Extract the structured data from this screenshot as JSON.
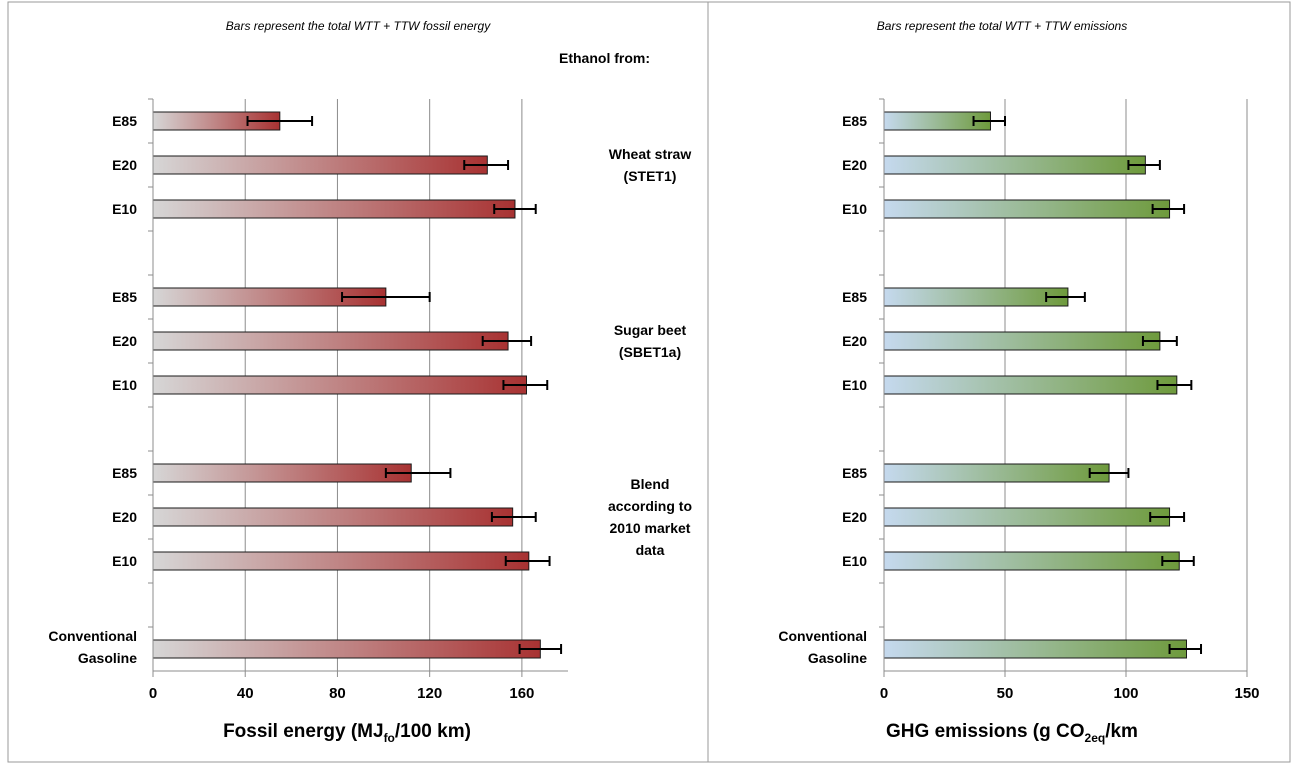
{
  "chart_data": [
    {
      "type": "bar",
      "orientation": "horizontal",
      "title": "Bars represent the total WTT + TTW fossil energy",
      "xlabel": {
        "main": "Fossil energy (MJ",
        "sub": "fo",
        "tail": "/100 km)"
      },
      "xlim": [
        0,
        180
      ],
      "xticks": [
        0,
        40,
        80,
        120,
        160
      ],
      "grid": true,
      "bar_color_start": "#d6d6d6",
      "bar_color_end": "#a83232",
      "categories": [
        "E85",
        "E20",
        "E10",
        "E85",
        "E20",
        "E10",
        "E85",
        "E20",
        "E10",
        "Conventional Gasoline"
      ],
      "values": [
        55,
        145,
        157,
        101,
        154,
        162,
        112,
        156,
        163,
        168
      ],
      "error_low": [
        41,
        135,
        148,
        82,
        143,
        152,
        101,
        147,
        153,
        159
      ],
      "error_high": [
        69,
        154,
        166,
        120,
        164,
        171,
        129,
        166,
        172,
        177
      ],
      "group_header": "Ethanol from:",
      "groups": [
        {
          "lines": [
            "Wheat straw",
            "(STET1)"
          ]
        },
        {
          "lines": [
            "Sugar beet",
            "(SBET1a)"
          ]
        },
        {
          "lines": [
            "Blend",
            "according to",
            "2010 market",
            "data"
          ]
        }
      ]
    },
    {
      "type": "bar",
      "orientation": "horizontal",
      "title": "Bars represent the total WTT + TTW emissions",
      "xlabel": {
        "main": "GHG emissions (g CO",
        "sub": "2eq",
        "tail": "/km"
      },
      "xlim": [
        0,
        150
      ],
      "xticks": [
        0,
        50,
        100,
        150
      ],
      "grid": true,
      "bar_color_start": "#c5d9ee",
      "bar_color_end": "#6e9a3c",
      "categories": [
        "E85",
        "E20",
        "E10",
        "E85",
        "E20",
        "E10",
        "E85",
        "E20",
        "E10",
        "Conventional Gasoline"
      ],
      "values": [
        44,
        108,
        118,
        76,
        114,
        121,
        93,
        118,
        122,
        125
      ],
      "error_low": [
        37,
        101,
        111,
        67,
        107,
        113,
        85,
        110,
        115,
        118
      ],
      "error_high": [
        50,
        114,
        124,
        83,
        121,
        127,
        101,
        124,
        128,
        131
      ]
    }
  ]
}
